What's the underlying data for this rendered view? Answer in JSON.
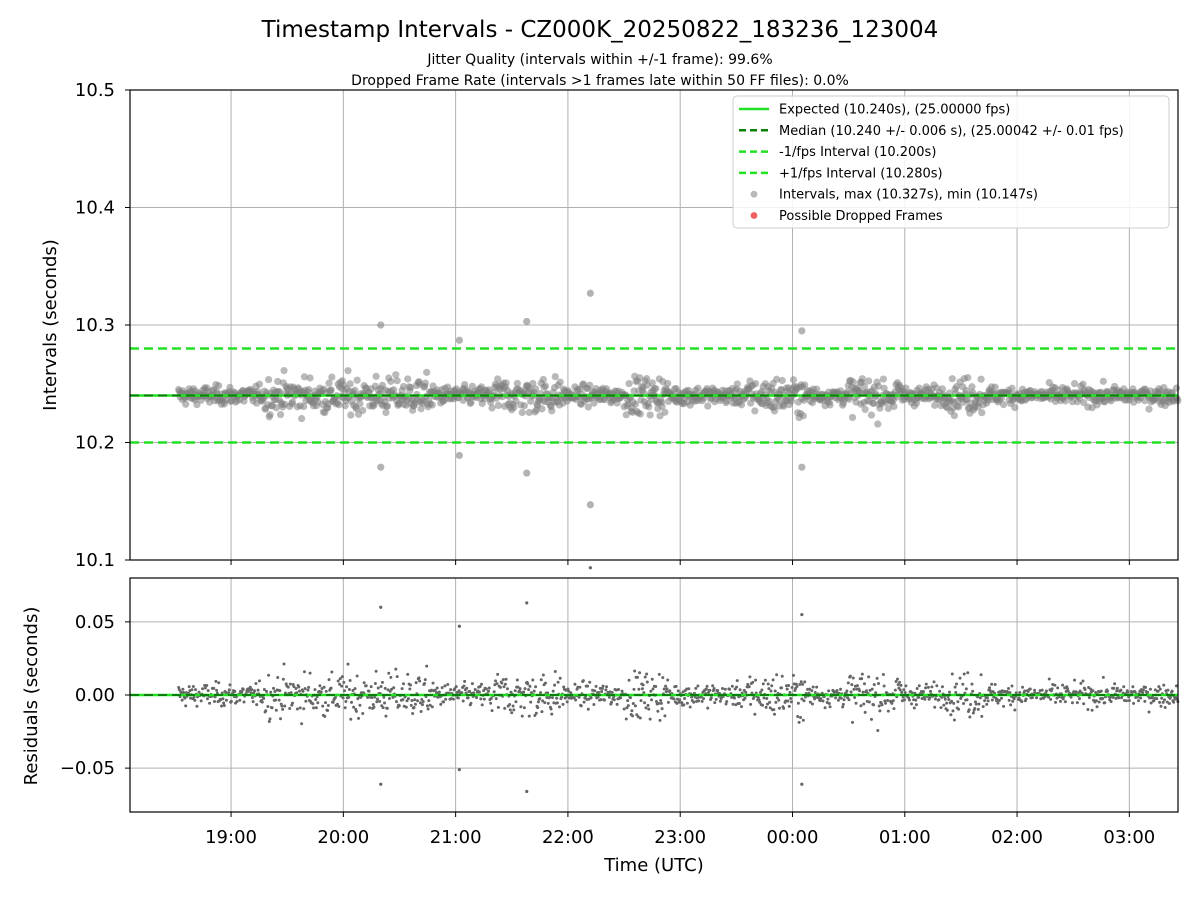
{
  "chart_data": {
    "type": "scatter",
    "title": "Timestamp Intervals - CZ000K_20250822_183236_123004",
    "subtitle_1": "Jitter Quality (intervals within +/-1 frame): 99.6%",
    "subtitle_2": "Dropped Frame Rate (intervals >1 frames late within 50 FF files): 0.0%",
    "xlabel": "Time (UTC)",
    "x_ticks": [
      "19:00",
      "20:00",
      "21:00",
      "22:00",
      "23:00",
      "00:00",
      "01:00",
      "02:00",
      "03:00"
    ],
    "x_range": [
      "18:06",
      "03:26"
    ],
    "top_panel": {
      "ylabel": "Intervals (seconds)",
      "ylim": [
        10.1,
        10.5
      ],
      "y_ticks": [
        "10.1",
        "10.2",
        "10.3",
        "10.4",
        "10.5"
      ],
      "grid": true,
      "expected": 10.24,
      "median": 10.24,
      "minus_interval": 10.2,
      "plus_interval": 10.28,
      "max": 10.327,
      "min": 10.147,
      "notable_points": [
        {
          "time": "20:20",
          "value": 10.3
        },
        {
          "time": "20:20",
          "value": 10.179
        },
        {
          "time": "21:02",
          "value": 10.287
        },
        {
          "time": "21:02",
          "value": 10.189
        },
        {
          "time": "21:38",
          "value": 10.303
        },
        {
          "time": "21:38",
          "value": 10.174
        },
        {
          "time": "22:12",
          "value": 10.327
        },
        {
          "time": "22:12",
          "value": 10.147
        },
        {
          "time": "00:05",
          "value": 10.295
        },
        {
          "time": "00:05",
          "value": 10.179
        }
      ]
    },
    "bottom_panel": {
      "ylabel": "Residuals (seconds)",
      "ylim": [
        -0.08,
        0.08
      ],
      "y_ticks": [
        "0.05",
        "0.00",
        "−0.05"
      ],
      "grid": true
    },
    "legend": {
      "placement": "upper-right",
      "entries": [
        {
          "label": "Expected (10.240s), (25.00000 fps)",
          "style": "solid",
          "color": "#22e022"
        },
        {
          "label": "Median (10.240 +/- 0.006 s), (25.00042 +/- 0.01 fps)",
          "style": "dashed",
          "color": "#087f08"
        },
        {
          "label": "-1/fps Interval (10.200s)",
          "style": "dashed",
          "color": "#22e022"
        },
        {
          "label": "+1/fps Interval (10.280s)",
          "style": "dashed",
          "color": "#22e022"
        },
        {
          "label": "Intervals, max (10.327s), min (10.147s)",
          "style": "marker",
          "color": "#808080"
        },
        {
          "label": "Possible Dropped Frames",
          "style": "marker",
          "color": "#ee4444"
        }
      ]
    },
    "colors": {
      "expected": "#22e022",
      "median": "#087f08",
      "points": "#808080",
      "dropped": "#ee4444",
      "grid": "#b0b0b0"
    }
  }
}
